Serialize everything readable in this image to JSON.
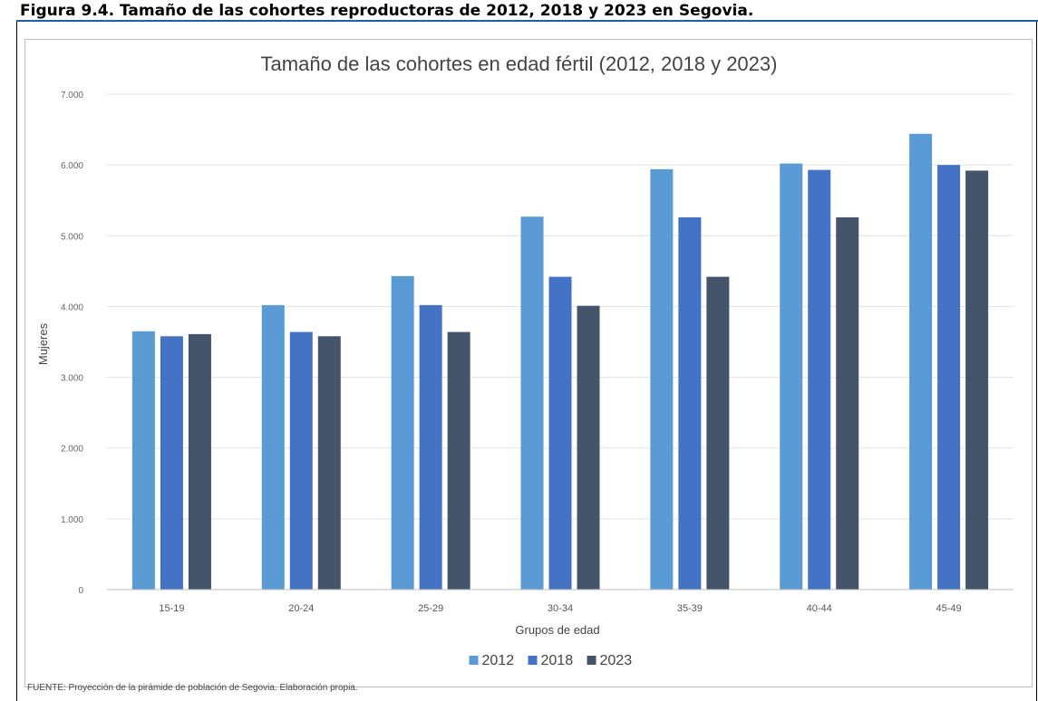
{
  "caption": "Figura 9.4. Tamaño de las cohortes reproductoras de 2012, 2018 y 2023 en Segovia.",
  "source": "FUENTE: Proyección de la pirámide de población de Segovia. Elaboración propia.",
  "chart_data": {
    "type": "bar",
    "title": "Tamaño de las cohortes en edad fértil (2012, 2018 y 2023)",
    "xlabel": "Grupos de edad",
    "ylabel": "Mujeres",
    "ylim": [
      0,
      7000
    ],
    "yticks": [
      0,
      1000,
      2000,
      3000,
      4000,
      5000,
      6000,
      7000
    ],
    "ytick_labels": [
      "0",
      "1.000",
      "2.000",
      "3.000",
      "4.000",
      "5.000",
      "6.000",
      "7.000"
    ],
    "grid": true,
    "legend_position": "bottom",
    "categories": [
      "15-19",
      "20-24",
      "25-29",
      "30-34",
      "35-39",
      "40-44",
      "45-49"
    ],
    "series": [
      {
        "name": "2012",
        "color": "#5b9bd5",
        "values": [
          3650,
          4020,
          4430,
          5270,
          5940,
          6020,
          6440
        ]
      },
      {
        "name": "2018",
        "color": "#4472c4",
        "values": [
          3580,
          3640,
          4020,
          4420,
          5260,
          5930,
          6000
        ]
      },
      {
        "name": "2023",
        "color": "#44546a",
        "values": [
          3610,
          3580,
          3640,
          4010,
          4420,
          5260,
          5920
        ]
      }
    ]
  }
}
